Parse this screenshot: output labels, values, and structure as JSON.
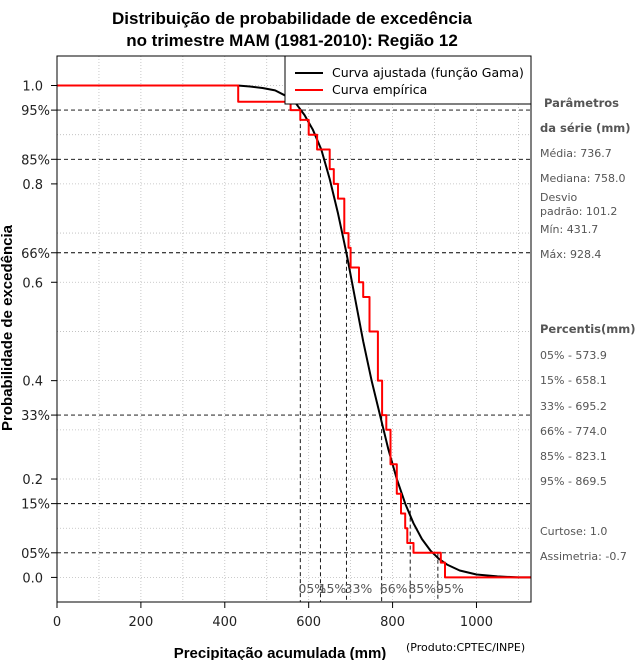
{
  "chart_data": {
    "type": "line",
    "title_line1": "Distribuição de probabilidade de excedência",
    "title_line2": "no trimestre MAM (1981-2010): Região 12",
    "xlabel": "Precipitação acumulada (mm)",
    "ylabel": "Probabilidade de excedência",
    "credit": "(Produto:CPTEC/INPE)",
    "xlim": [
      0,
      1130
    ],
    "ylim": [
      -0.05,
      1.06
    ],
    "x_ticks": [
      0,
      200,
      400,
      600,
      800,
      1000
    ],
    "x_tick_labels": [
      "0",
      "200",
      "400",
      "600",
      "800",
      "1000"
    ],
    "y_ticks": [
      0.0,
      0.2,
      0.4,
      0.6,
      0.8,
      1.0
    ],
    "y_tick_labels": [
      "0.0",
      "0.2",
      "0.4",
      "0.6",
      "0.8",
      "1.0"
    ],
    "legend": {
      "position": "top-right",
      "entries": [
        {
          "label": "Curva ajustada (função Gama)",
          "color": "#000000"
        },
        {
          "label": "Curva empírica",
          "color": "#ff0000"
        }
      ]
    },
    "percentiles": [
      {
        "label": "05%",
        "p": 0.95,
        "value": 573.9
      },
      {
        "label": "15%",
        "p": 0.85,
        "value": 658.1
      },
      {
        "label": "33%",
        "p": 0.66,
        "value": 695.2
      },
      {
        "label": "66%",
        "p": 0.33,
        "value": 774.0
      },
      {
        "label": "85%",
        "p": 0.15,
        "value": 823.1
      },
      {
        "label": "95%",
        "p": 0.05,
        "value": 869.5
      }
    ],
    "percentile_x_positions": [
      580,
      628,
      690,
      774,
      842,
      908
    ],
    "percentile_probability_labels": [
      {
        "label": "95%",
        "p": 0.95
      },
      {
        "label": "85%",
        "p": 0.85
      },
      {
        "label": "66%",
        "p": 0.66
      },
      {
        "label": "33%",
        "p": 0.33
      },
      {
        "label": "15%",
        "p": 0.15
      },
      {
        "label": "05%",
        "p": 0.05
      }
    ],
    "series": [
      {
        "name": "Curva ajustada (função Gama)",
        "color": "#000000",
        "x": [
          430,
          460,
          490,
          520,
          550,
          570,
          590,
          610,
          630,
          650,
          670,
          690,
          710,
          730,
          750,
          770,
          790,
          810,
          830,
          850,
          870,
          890,
          910,
          930,
          960,
          1000,
          1050,
          1100,
          1130
        ],
        "y": [
          1.0,
          0.998,
          0.995,
          0.99,
          0.977,
          0.963,
          0.94,
          0.91,
          0.87,
          0.81,
          0.74,
          0.66,
          0.57,
          0.48,
          0.4,
          0.33,
          0.26,
          0.2,
          0.15,
          0.11,
          0.078,
          0.055,
          0.038,
          0.026,
          0.014,
          0.006,
          0.002,
          0.0,
          0.0
        ]
      },
      {
        "name": "Curva empírica",
        "color": "#ff0000",
        "x": [
          0,
          432,
          432,
          440,
          440,
          557,
          557,
          580,
          580,
          600,
          600,
          620,
          620,
          650,
          650,
          660,
          660,
          670,
          670,
          685,
          685,
          695,
          695,
          700,
          700,
          720,
          720,
          730,
          730,
          745,
          745,
          765,
          765,
          775,
          775,
          785,
          785,
          795,
          795,
          810,
          810,
          820,
          820,
          830,
          830,
          835,
          835,
          850,
          850,
          890,
          890,
          915,
          915,
          925,
          925,
          930,
          930,
          1130
        ],
        "y": [
          1.0,
          1.0,
          0.967,
          0.967,
          0.967,
          0.967,
          0.95,
          0.95,
          0.93,
          0.93,
          0.9,
          0.9,
          0.87,
          0.87,
          0.83,
          0.83,
          0.8,
          0.8,
          0.77,
          0.77,
          0.7,
          0.7,
          0.67,
          0.67,
          0.63,
          0.63,
          0.6,
          0.6,
          0.57,
          0.57,
          0.5,
          0.5,
          0.4,
          0.4,
          0.33,
          0.33,
          0.3,
          0.3,
          0.23,
          0.23,
          0.17,
          0.17,
          0.13,
          0.13,
          0.1,
          0.1,
          0.07,
          0.07,
          0.05,
          0.05,
          0.05,
          0.05,
          0.03,
          0.03,
          0.0,
          0.0,
          0.0,
          0.0
        ]
      }
    ],
    "grid": true
  },
  "sidebar": {
    "params_heading_1": "Parâmetros",
    "params_heading_2": "da série (mm)",
    "media": "Média: 736.7",
    "mediana": "Mediana: 758.0",
    "desvio_1": "Desvio",
    "desvio_2": "padrão: 101.2",
    "min": "Mín: 431.7",
    "max": "Máx: 928.4",
    "percentis_heading": "Percentis(mm)",
    "p05": "05% - 573.9",
    "p15": "15% - 658.1",
    "p33": "33% - 695.2",
    "p66": "66% - 774.0",
    "p85": "85% - 823.1",
    "p95": "95% - 869.5",
    "curtose": "Curtose: 1.0",
    "assimetria": "Assimetria: -0.7"
  }
}
